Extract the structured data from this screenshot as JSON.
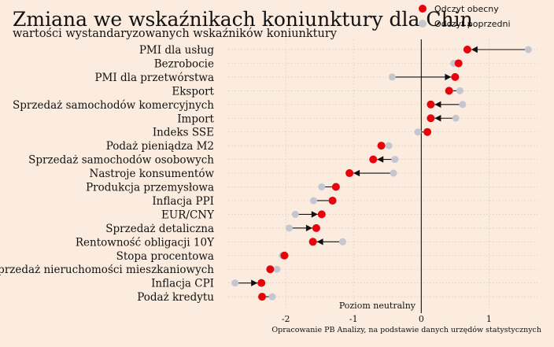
{
  "chart_data": {
    "type": "scatter",
    "title": "Zmiana we wskaźnikach koniunktury dla Chin",
    "subtitle": "wartości wystandaryzowanych wskaźników koniunktury",
    "categories": [
      "PMI dla usług",
      "Bezrobocie",
      "PMI dla przetwórstwa",
      "Eksport",
      "Sprzedaż samochodów komercyjnych",
      "Import",
      "Indeks SSE",
      "Podaż pieniądza M2",
      "Sprzedaż samochodów osobowych",
      "Nastroje konsumentów",
      "Produkcja przemysłowa",
      "Inflacja PPI",
      "EUR/CNY",
      "Sprzedaż detaliczna",
      "Rentowność obligacji 10Y",
      "Stopa procentowa",
      "Sprzedaż nieruchomości mieszkaniowych",
      "Inflacja CPI",
      "Podaż kredytu"
    ],
    "series": [
      {
        "name": "Odczyt obecny",
        "color": "#e8000b",
        "values": [
          0.68,
          0.55,
          0.5,
          0.41,
          0.14,
          0.14,
          0.09,
          -0.59,
          -0.71,
          -1.06,
          -1.26,
          -1.31,
          -1.47,
          -1.55,
          -1.6,
          -2.02,
          -2.23,
          -2.36,
          -2.35
        ]
      },
      {
        "name": "Odczyt poprzedni",
        "color": "#c4c6d0",
        "values": [
          1.58,
          0.48,
          -0.43,
          0.57,
          0.61,
          0.51,
          -0.05,
          -0.48,
          -0.39,
          -0.41,
          -1.47,
          -1.59,
          -1.86,
          -1.95,
          -1.16,
          -2.05,
          -2.13,
          -2.75,
          -2.2
        ]
      }
    ],
    "xlim": [
      -2.85,
      1.75
    ],
    "xticks": [
      "-2",
      "-1",
      "0",
      "1"
    ],
    "xtick_values": [
      -2,
      -1,
      0,
      1
    ],
    "neutral_label": "Poziom neutralny",
    "grid": true,
    "legend_position": "top-right",
    "source": "Opracowanie PB Analizy, na podstawie danych urzędów statystycznych"
  }
}
